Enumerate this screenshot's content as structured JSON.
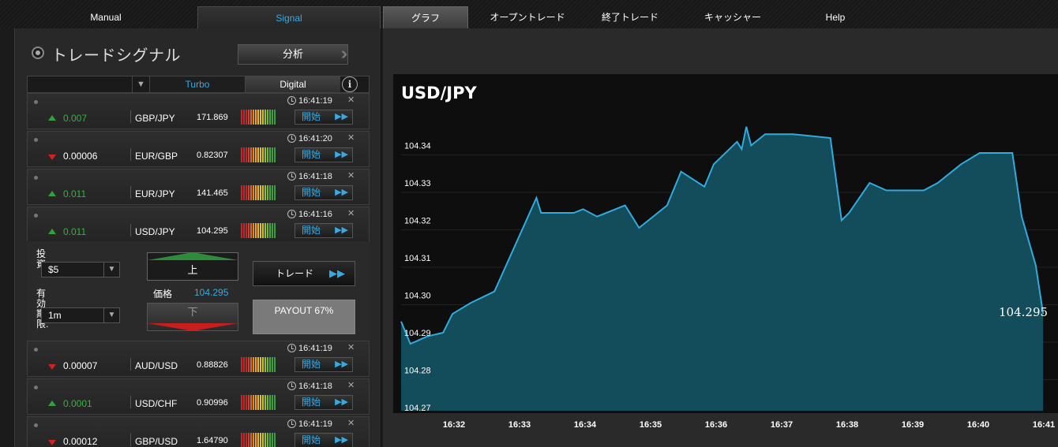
{
  "nav": {
    "manual": "Manual",
    "signal": "Signal",
    "graph": "グラフ",
    "open_trades": "オープントレード",
    "closed_trades": "終了トレード",
    "cashier": "キャッシャー",
    "help": "Help"
  },
  "signals": {
    "title": "トレードシグナル",
    "analyze": "分析",
    "filters": {
      "turbo": "Turbo",
      "digital": "Digital"
    },
    "start_label": "開始",
    "rows": [
      {
        "change": "0.007",
        "dir": "up",
        "pair": "GBP/JPY",
        "price": "171.869",
        "time": "16:41:19"
      },
      {
        "change": "0.00006",
        "dir": "down",
        "pair": "EUR/GBP",
        "price": "0.82307",
        "time": "16:41:20"
      },
      {
        "change": "0.011",
        "dir": "up",
        "pair": "EUR/JPY",
        "price": "141.465",
        "time": "16:41:18"
      },
      {
        "change": "0.011",
        "dir": "up",
        "pair": "USD/JPY",
        "price": "104.295",
        "time": "16:41:16"
      },
      {
        "change": "0.00007",
        "dir": "down",
        "pair": "AUD/USD",
        "price": "0.88826",
        "time": "16:41:19"
      },
      {
        "change": "0.0001",
        "dir": "up",
        "pair": "USD/CHF",
        "price": "0.90996",
        "time": "16:41:18"
      },
      {
        "change": "0.00012",
        "dir": "down",
        "pair": "GBP/USD",
        "price": "1.64790",
        "time": "16:41:19"
      }
    ]
  },
  "trade": {
    "invest_label": "投資:",
    "invest_value": "$5",
    "expiry_label": "有効期限:",
    "expiry_value": "1m",
    "up": "上",
    "down": "下",
    "price_label": "価格",
    "price_value": "104.295",
    "trade_button": "トレード",
    "payout": "PAYOUT 67%"
  },
  "chart_data": {
    "type": "area",
    "title": "USD/JPY",
    "ylim": [
      104.27,
      104.35
    ],
    "y_ticks": [
      "104.27",
      "104.28",
      "104.29",
      "104.30",
      "104.31",
      "104.32",
      "104.33",
      "104.34"
    ],
    "x_ticks": [
      "16:32",
      "16:33",
      "16:34",
      "16:35",
      "16:36",
      "16:37",
      "16:38",
      "16:39",
      "16:40",
      "16:41"
    ],
    "last_value": "104.295",
    "color": "#33aadd",
    "points": [
      [
        0.0,
        104.293
      ],
      [
        0.1,
        104.287
      ],
      [
        0.28,
        104.289
      ],
      [
        0.45,
        104.29
      ],
      [
        0.55,
        104.295
      ],
      [
        0.75,
        104.298
      ],
      [
        1.0,
        104.301
      ],
      [
        1.18,
        104.311
      ],
      [
        1.45,
        104.326
      ],
      [
        1.5,
        104.322
      ],
      [
        1.85,
        104.322
      ],
      [
        1.95,
        104.323
      ],
      [
        2.1,
        104.321
      ],
      [
        2.4,
        104.324
      ],
      [
        2.55,
        104.318
      ],
      [
        2.85,
        104.324
      ],
      [
        3.0,
        104.333
      ],
      [
        3.25,
        104.329
      ],
      [
        3.35,
        104.335
      ],
      [
        3.6,
        104.341
      ],
      [
        3.65,
        104.339
      ],
      [
        3.7,
        104.345
      ],
      [
        3.75,
        104.34
      ],
      [
        3.9,
        104.343
      ],
      [
        4.2,
        104.343
      ],
      [
        4.6,
        104.342
      ],
      [
        4.72,
        104.32
      ],
      [
        4.8,
        104.322
      ],
      [
        5.02,
        104.33
      ],
      [
        5.2,
        104.328
      ],
      [
        5.6,
        104.328
      ],
      [
        5.75,
        104.33
      ],
      [
        6.0,
        104.335
      ],
      [
        6.2,
        104.338
      ],
      [
        6.55,
        104.338
      ],
      [
        6.65,
        104.321
      ],
      [
        6.8,
        104.308
      ],
      [
        6.88,
        104.295
      ]
    ]
  }
}
